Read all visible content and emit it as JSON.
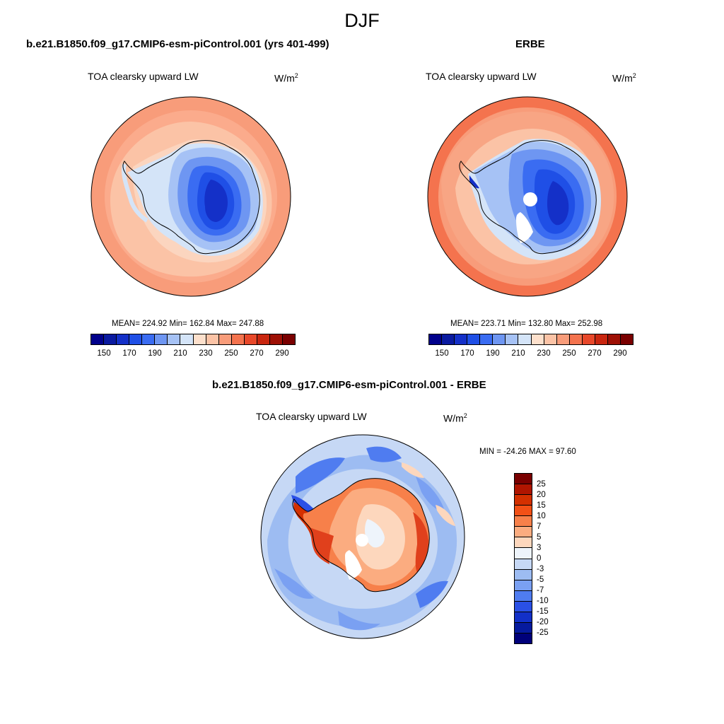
{
  "figure": {
    "title": "DJF"
  },
  "panels": [
    {
      "title": "b.e21.B1850.f09_g17.CMIP6-esm-piControl.001 (yrs 401-499)",
      "variable": "TOA clearsky upward LW",
      "units": "W/m",
      "units_sup": "2",
      "stats": {
        "mean": "224.92",
        "min": "162.84",
        "max": "247.88",
        "text": "MEAN= 224.92  Min= 162.84  Max= 247.88"
      },
      "colorbar_ticks": [
        "150",
        "170",
        "190",
        "210",
        "230",
        "250",
        "270",
        "290"
      ]
    },
    {
      "title": "ERBE",
      "variable": "TOA clearsky upward LW",
      "units": "W/m",
      "units_sup": "2",
      "stats": {
        "mean": "223.71",
        "min": "132.80",
        "max": "252.98",
        "text": "MEAN= 223.71  Min= 132.80  Max= 252.98"
      },
      "colorbar_ticks": [
        "150",
        "170",
        "190",
        "210",
        "230",
        "250",
        "270",
        "290"
      ]
    },
    {
      "title": "b.e21.B1850.f09_g17.CMIP6-esm-piControl.001 - ERBE",
      "variable": "TOA clearsky upward LW",
      "units": "W/m",
      "units_sup": "2",
      "stats": {
        "min": "-24.26",
        "max": "97.60",
        "text": "MIN = -24.26 MAX =  97.60"
      },
      "colorbar_ticks": [
        "25",
        "20",
        "15",
        "10",
        "7",
        "5",
        "3",
        "0",
        "-3",
        "-5",
        "-7",
        "-10",
        "-15",
        "-20",
        "-25"
      ]
    }
  ],
  "colors": {
    "abs_scale": [
      "#00008b",
      "#0a1aa0",
      "#1430c8",
      "#1f4fe6",
      "#3a6cf2",
      "#6e96f2",
      "#a6c2f5",
      "#d4e4f8",
      "#fde0cc",
      "#fbc3a6",
      "#f89c7a",
      "#f4734e",
      "#e8482a",
      "#c9260f",
      "#9e1005",
      "#7a0000"
    ],
    "diff_scale": [
      "#7a0000",
      "#b01500",
      "#d43000",
      "#f25016",
      "#f7804a",
      "#fbac80",
      "#fdd7bd",
      "#eef4fb",
      "#c6d8f5",
      "#9dbcf2",
      "#7aa0f2",
      "#4f7cf0",
      "#2a50e6",
      "#1230c8",
      "#061a9e",
      "#00007a"
    ]
  },
  "chart_data": [
    {
      "type": "heatmap",
      "title": "b.e21.B1850.f09_g17.CMIP6-esm-piControl.001 (yrs 401-499)",
      "variable": "TOA clearsky upward LW",
      "projection": "south polar stereographic",
      "colorbar": {
        "levels": [
          150,
          160,
          170,
          180,
          190,
          200,
          210,
          220,
          230,
          240,
          250,
          260,
          270,
          280,
          290
        ],
        "labeled": [
          150,
          170,
          190,
          210,
          230,
          250,
          270,
          290
        ]
      },
      "stats": {
        "mean": 224.92,
        "min": 162.84,
        "max": 247.88
      }
    },
    {
      "type": "heatmap",
      "title": "ERBE",
      "variable": "TOA clearsky upward LW",
      "projection": "south polar stereographic",
      "colorbar": {
        "levels": [
          150,
          160,
          170,
          180,
          190,
          200,
          210,
          220,
          230,
          240,
          250,
          260,
          270,
          280,
          290
        ],
        "labeled": [
          150,
          170,
          190,
          210,
          230,
          250,
          270,
          290
        ]
      },
      "stats": {
        "mean": 223.71,
        "min": 132.8,
        "max": 252.98
      }
    },
    {
      "type": "heatmap",
      "title": "b.e21.B1850.f09_g17.CMIP6-esm-piControl.001 - ERBE",
      "variable": "TOA clearsky upward LW",
      "projection": "south polar stereographic",
      "colorbar": {
        "levels": [
          25,
          20,
          15,
          10,
          7,
          5,
          3,
          0,
          -3,
          -5,
          -7,
          -10,
          -15,
          -20,
          -25
        ]
      },
      "stats": {
        "min": -24.26,
        "max": 97.6
      }
    }
  ]
}
